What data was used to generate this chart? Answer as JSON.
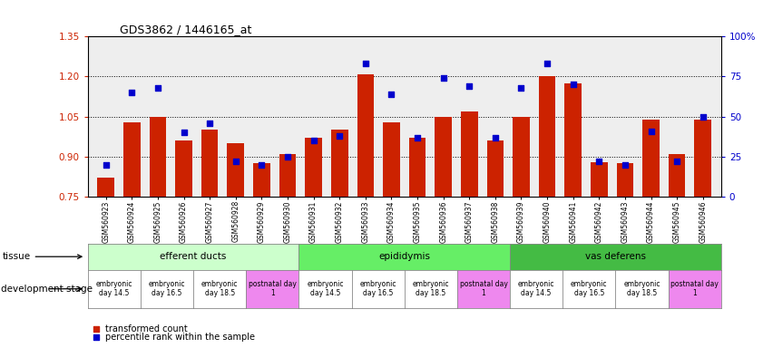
{
  "title": "GDS3862 / 1446165_at",
  "samples": [
    "GSM560923",
    "GSM560924",
    "GSM560925",
    "GSM560926",
    "GSM560927",
    "GSM560928",
    "GSM560929",
    "GSM560930",
    "GSM560931",
    "GSM560932",
    "GSM560933",
    "GSM560934",
    "GSM560935",
    "GSM560936",
    "GSM560937",
    "GSM560938",
    "GSM560939",
    "GSM560940",
    "GSM560941",
    "GSM560942",
    "GSM560943",
    "GSM560944",
    "GSM560945",
    "GSM560946"
  ],
  "transformed_count": [
    0.82,
    1.03,
    1.05,
    0.96,
    1.0,
    0.95,
    0.875,
    0.91,
    0.97,
    1.0,
    1.21,
    1.03,
    0.97,
    1.05,
    1.07,
    0.96,
    1.05,
    1.2,
    1.175,
    0.88,
    0.875,
    1.04,
    0.91,
    1.04
  ],
  "percentile_rank": [
    20,
    65,
    68,
    40,
    46,
    22,
    20,
    25,
    35,
    38,
    83,
    64,
    37,
    74,
    69,
    37,
    68,
    83,
    70,
    22,
    20,
    41,
    22,
    50
  ],
  "bar_color": "#cc2200",
  "dot_color": "#0000cc",
  "ylim_left": [
    0.75,
    1.35
  ],
  "ylim_right": [
    0,
    100
  ],
  "yticks_left": [
    0.75,
    0.9,
    1.05,
    1.2,
    1.35
  ],
  "yticks_right": [
    0,
    25,
    50,
    75,
    100
  ],
  "ytick_labels_right": [
    "0",
    "25",
    "50",
    "75",
    "100%"
  ],
  "grid_values": [
    0.9,
    1.05,
    1.2
  ],
  "tissue_groups": [
    {
      "label": "efferent ducts",
      "start": 0,
      "end": 7,
      "color": "#ccffcc"
    },
    {
      "label": "epididymis",
      "start": 8,
      "end": 15,
      "color": "#66ee66"
    },
    {
      "label": "vas deferens",
      "start": 16,
      "end": 23,
      "color": "#44bb44"
    }
  ],
  "dev_stage_groups": [
    {
      "label": "embryonic\nday 14.5",
      "start": 0,
      "end": 1,
      "color": "#ffffff"
    },
    {
      "label": "embryonic\nday 16.5",
      "start": 2,
      "end": 3,
      "color": "#ffffff"
    },
    {
      "label": "embryonic\nday 18.5",
      "start": 4,
      "end": 5,
      "color": "#ffffff"
    },
    {
      "label": "postnatal day\n1",
      "start": 6,
      "end": 7,
      "color": "#ee88ee"
    },
    {
      "label": "embryonic\nday 14.5",
      "start": 8,
      "end": 9,
      "color": "#ffffff"
    },
    {
      "label": "embryonic\nday 16.5",
      "start": 10,
      "end": 11,
      "color": "#ffffff"
    },
    {
      "label": "embryonic\nday 18.5",
      "start": 12,
      "end": 13,
      "color": "#ffffff"
    },
    {
      "label": "postnatal day\n1",
      "start": 14,
      "end": 15,
      "color": "#ee88ee"
    },
    {
      "label": "embryonic\nday 14.5",
      "start": 16,
      "end": 17,
      "color": "#ffffff"
    },
    {
      "label": "embryonic\nday 16.5",
      "start": 18,
      "end": 19,
      "color": "#ffffff"
    },
    {
      "label": "embryonic\nday 18.5",
      "start": 20,
      "end": 21,
      "color": "#ffffff"
    },
    {
      "label": "postnatal day\n1",
      "start": 22,
      "end": 23,
      "color": "#ee88ee"
    }
  ],
  "legend_red_label": "transformed count",
  "legend_blue_label": "percentile rank within the sample",
  "tissue_label": "tissue",
  "dev_stage_label": "development stage",
  "background_color": "#ffffff",
  "plot_bg_color": "#eeeeee"
}
